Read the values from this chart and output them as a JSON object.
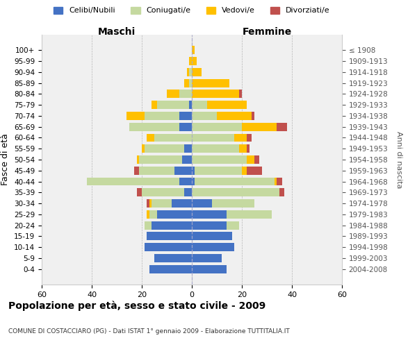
{
  "age_groups": [
    "100+",
    "95-99",
    "90-94",
    "85-89",
    "80-84",
    "75-79",
    "70-74",
    "65-69",
    "60-64",
    "55-59",
    "50-54",
    "45-49",
    "40-44",
    "35-39",
    "30-34",
    "25-29",
    "20-24",
    "15-19",
    "10-14",
    "5-9",
    "0-4"
  ],
  "birth_years": [
    "≤ 1908",
    "1909-1913",
    "1914-1918",
    "1919-1923",
    "1924-1928",
    "1929-1933",
    "1934-1938",
    "1939-1943",
    "1944-1948",
    "1949-1953",
    "1954-1958",
    "1959-1963",
    "1964-1968",
    "1969-1973",
    "1974-1978",
    "1979-1983",
    "1984-1988",
    "1989-1993",
    "1994-1998",
    "1999-2003",
    "2004-2008"
  ],
  "males": {
    "celibi": [
      0,
      0,
      0,
      0,
      0,
      1,
      5,
      5,
      0,
      3,
      4,
      7,
      5,
      3,
      8,
      14,
      16,
      18,
      19,
      15,
      17
    ],
    "coniugati": [
      0,
      0,
      1,
      1,
      5,
      13,
      14,
      20,
      15,
      16,
      17,
      14,
      37,
      17,
      8,
      3,
      3,
      0,
      0,
      0,
      0
    ],
    "vedovi": [
      0,
      1,
      1,
      2,
      5,
      2,
      7,
      0,
      3,
      1,
      1,
      0,
      0,
      0,
      1,
      1,
      0,
      0,
      0,
      0,
      0
    ],
    "divorziati": [
      0,
      0,
      0,
      0,
      0,
      0,
      0,
      0,
      0,
      0,
      0,
      2,
      0,
      2,
      1,
      0,
      0,
      0,
      0,
      0,
      0
    ]
  },
  "females": {
    "nubili": [
      0,
      0,
      0,
      0,
      0,
      0,
      0,
      0,
      0,
      0,
      0,
      1,
      1,
      0,
      8,
      14,
      14,
      16,
      17,
      12,
      14
    ],
    "coniugate": [
      0,
      0,
      0,
      0,
      0,
      6,
      10,
      20,
      17,
      19,
      22,
      19,
      32,
      35,
      17,
      18,
      5,
      0,
      0,
      0,
      0
    ],
    "vedove": [
      1,
      2,
      4,
      15,
      19,
      16,
      14,
      14,
      5,
      3,
      3,
      2,
      1,
      0,
      0,
      0,
      0,
      0,
      0,
      0,
      0
    ],
    "divorziate": [
      0,
      0,
      0,
      0,
      1,
      0,
      1,
      4,
      2,
      1,
      2,
      6,
      2,
      2,
      0,
      0,
      0,
      0,
      0,
      0,
      0
    ]
  },
  "colors": {
    "celibi": "#4472c4",
    "coniugati": "#c5d9a0",
    "vedovi": "#ffc000",
    "divorziati": "#c0504d"
  },
  "xlim": 60,
  "title": "Popolazione per età, sesso e stato civile - 2009",
  "subtitle": "COMUNE DI COSTACCIARO (PG) - Dati ISTAT 1° gennaio 2009 - Elaborazione TUTTITALIA.IT",
  "xlabel_left": "Maschi",
  "xlabel_right": "Femmine",
  "ylabel_left": "Fasce di età",
  "ylabel_right": "Anni di nascita",
  "legend_labels": [
    "Celibi/Nubili",
    "Coniugati/e",
    "Vedovi/e",
    "Divorziati/e"
  ],
  "bg_color": "#f0f0f0"
}
